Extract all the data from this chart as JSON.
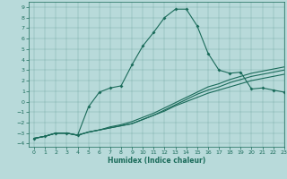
{
  "xlabel": "Humidex (Indice chaleur)",
  "bg_color": "#b8dada",
  "line_color": "#1a6b5a",
  "xlim": [
    -0.5,
    23
  ],
  "ylim": [
    -4.3,
    9.5
  ],
  "xticks": [
    0,
    1,
    2,
    3,
    4,
    5,
    6,
    7,
    8,
    9,
    10,
    11,
    12,
    13,
    14,
    15,
    16,
    17,
    18,
    19,
    20,
    21,
    22,
    23
  ],
  "yticks": [
    -4,
    -3,
    -2,
    -1,
    0,
    1,
    2,
    3,
    4,
    5,
    6,
    7,
    8,
    9
  ],
  "series1_x": [
    0,
    1,
    2,
    3,
    4,
    5,
    6,
    7,
    8,
    9,
    10,
    11,
    12,
    13,
    14,
    15,
    16,
    17,
    18,
    19,
    20,
    21,
    22,
    23
  ],
  "series1_y": [
    -3.5,
    -3.3,
    -3.0,
    -3.0,
    -3.2,
    -0.5,
    0.9,
    1.3,
    1.5,
    3.5,
    5.3,
    6.6,
    8.0,
    8.8,
    8.8,
    7.2,
    4.6,
    3.0,
    2.7,
    2.8,
    1.2,
    1.3,
    1.1,
    0.9
  ],
  "series2_x": [
    0,
    1,
    2,
    3,
    4,
    5,
    6,
    7,
    8,
    9,
    10,
    11,
    12,
    13,
    14,
    15,
    16,
    17,
    18,
    19,
    20,
    21,
    22,
    23
  ],
  "series2_y": [
    -3.5,
    -3.3,
    -3.0,
    -3.0,
    -3.2,
    -2.9,
    -2.7,
    -2.5,
    -2.3,
    -2.1,
    -1.7,
    -1.3,
    -0.9,
    -0.4,
    0.0,
    0.4,
    0.8,
    1.1,
    1.4,
    1.7,
    2.0,
    2.2,
    2.4,
    2.6
  ],
  "series3_x": [
    0,
    1,
    2,
    3,
    4,
    5,
    6,
    7,
    8,
    9,
    10,
    11,
    12,
    13,
    14,
    15,
    16,
    17,
    18,
    19,
    20,
    21,
    22,
    23
  ],
  "series3_y": [
    -3.5,
    -3.3,
    -3.0,
    -3.0,
    -3.2,
    -2.9,
    -2.7,
    -2.5,
    -2.3,
    -2.1,
    -1.7,
    -1.3,
    -0.8,
    -0.3,
    0.2,
    0.7,
    1.1,
    1.4,
    1.8,
    2.1,
    2.4,
    2.6,
    2.8,
    3.0
  ],
  "series4_x": [
    0,
    1,
    2,
    3,
    4,
    5,
    6,
    7,
    8,
    9,
    10,
    11,
    12,
    13,
    14,
    15,
    16,
    17,
    18,
    19,
    20,
    21,
    22,
    23
  ],
  "series4_y": [
    -3.5,
    -3.3,
    -3.0,
    -3.0,
    -3.2,
    -2.9,
    -2.7,
    -2.4,
    -2.2,
    -1.9,
    -1.5,
    -1.1,
    -0.6,
    -0.1,
    0.4,
    0.9,
    1.4,
    1.7,
    2.1,
    2.4,
    2.7,
    2.9,
    3.1,
    3.3
  ]
}
